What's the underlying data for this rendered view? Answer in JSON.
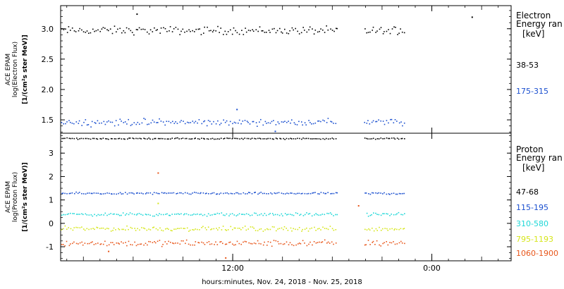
{
  "chart_data": [
    {
      "type": "scatter",
      "panel": "electron",
      "ylabel": [
        "ACE EPAM",
        "log(Electron Flux)",
        "[1/(cm²s ster MeV)]"
      ],
      "ylim": [
        1.28,
        3.38
      ],
      "yticks": [
        {
          "value": 3.0,
          "label": "3.0"
        },
        {
          "value": 2.5,
          "label": "2.5"
        },
        {
          "value": 2.0,
          "label": "2.0"
        },
        {
          "value": 1.5,
          "label": "1.5"
        }
      ],
      "legend_title": [
        "Electron",
        "Energy ran",
        "[keV]"
      ],
      "series": [
        {
          "name": "38-53",
          "color": "#000000",
          "level": 2.97,
          "spread": 0.06,
          "outliers": [
            {
              "x": 0.168,
              "y": 3.24
            },
            {
              "x": 0.912,
              "y": 3.19
            }
          ]
        },
        {
          "name": "175-315",
          "color": "#1a4fcf",
          "level": 1.46,
          "spread": 0.05,
          "outliers": [
            {
              "x": 0.39,
              "y": 1.67
            },
            {
              "x": 0.475,
              "y": 1.31
            }
          ]
        }
      ]
    },
    {
      "type": "scatter",
      "panel": "proton",
      "ylabel": [
        "ACE EPAM",
        "log(Proton Flux)",
        "[1/(cm²s ster MeV)]"
      ],
      "ylim": [
        -1.6,
        3.85
      ],
      "yticks": [
        {
          "value": 3,
          "label": "3"
        },
        {
          "value": 2,
          "label": "2"
        },
        {
          "value": 1,
          "label": "1"
        },
        {
          "value": 0,
          "label": "0"
        },
        {
          "value": -1,
          "label": "-1"
        }
      ],
      "legend_title": [
        "Proton",
        "Energy ran",
        "[keV]"
      ],
      "series": [
        {
          "name": "47-68",
          "color": "#000000",
          "level": 3.62,
          "spread": 0.025,
          "outliers": []
        },
        {
          "name": "115-195",
          "color": "#1a4fcf",
          "level": 1.28,
          "spread": 0.04,
          "outliers": []
        },
        {
          "name": "310-580",
          "color": "#1ed7d7",
          "level": 0.38,
          "spread": 0.06,
          "outliers": []
        },
        {
          "name": "795-1193",
          "color": "#d6e61a",
          "level": -0.23,
          "spread": 0.09,
          "outliers": [
            {
              "x": 0.215,
              "y": 0.85
            }
          ]
        },
        {
          "name": "1060-1900",
          "color": "#e8561a",
          "level": -0.85,
          "spread": 0.12,
          "outliers": [
            {
              "x": 0.215,
              "y": 2.15
            },
            {
              "x": 0.105,
              "y": -1.2
            },
            {
              "x": 0.365,
              "y": -1.48
            },
            {
              "x": 0.66,
              "y": 0.75
            }
          ]
        }
      ]
    }
  ],
  "time_axis": {
    "ticks": [
      {
        "pos": 0.382,
        "label": "12:00"
      },
      {
        "pos": 0.824,
        "label": "0:00"
      }
    ],
    "gap": [
      0.648,
      0.655
    ],
    "data_end": 0.765,
    "xlabel": "hours:minutes, Nov. 24, 2018 - Nov. 25, 2018"
  }
}
